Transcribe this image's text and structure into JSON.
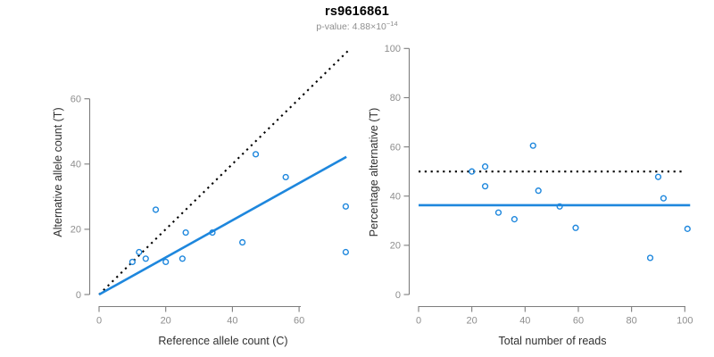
{
  "title": "rs9616861",
  "subtitle": {
    "prefix": "p-value: 4.88×10",
    "exponent": "−14"
  },
  "colors": {
    "accent_blue": "#1e87dd",
    "line_black": "#000000",
    "axis_gray": "#7d7d7d",
    "tick_label_gray": "#8e8e8e",
    "axis_title_dark": "#303030",
    "subtitle_gray": "#8e8e8e"
  },
  "chart_data": [
    {
      "type": "scatter",
      "panel": "left",
      "xlabel": "Reference allele count (C)",
      "ylabel": "Alternative allele count (T)",
      "xticks": [
        0,
        20,
        40,
        60
      ],
      "yticks": [
        0,
        20,
        40,
        60
      ],
      "xlim": [
        0,
        74.7
      ],
      "ylim": [
        0,
        74.7
      ],
      "grid": false,
      "legend": "none",
      "points": [
        [
          10,
          10
        ],
        [
          12,
          13
        ],
        [
          14,
          11
        ],
        [
          17,
          26
        ],
        [
          20,
          10
        ],
        [
          25,
          11
        ],
        [
          26,
          19
        ],
        [
          34,
          19
        ],
        [
          43,
          16
        ],
        [
          47,
          43
        ],
        [
          56,
          36
        ],
        [
          74,
          13
        ],
        [
          74,
          27
        ]
      ],
      "lines": [
        {
          "name": "identity-line",
          "style": "dotted",
          "color": "#000000",
          "x1": 0,
          "y1": 0,
          "x2": 74.6,
          "y2": 74.6
        },
        {
          "name": "fit-line",
          "style": "solid",
          "color": "#1e87dd",
          "x1": 0,
          "y1": 0,
          "x2": 74.2,
          "y2": 42.2
        }
      ]
    },
    {
      "type": "scatter",
      "panel": "right",
      "xlabel": "Total number of reads",
      "ylabel": "Percentage alternative (T)",
      "xticks": [
        0,
        20,
        40,
        60,
        80,
        100
      ],
      "yticks": [
        0,
        20,
        40,
        60,
        80,
        100
      ],
      "xlim": [
        0,
        102
      ],
      "ylim": [
        0,
        100
      ],
      "grid": false,
      "legend": "none",
      "points": [
        [
          20,
          50
        ],
        [
          25,
          44
        ],
        [
          25,
          52
        ],
        [
          30,
          33.3
        ],
        [
          36,
          30.6
        ],
        [
          43,
          60.5
        ],
        [
          45,
          42.2
        ],
        [
          53,
          35.8
        ],
        [
          59,
          27.1
        ],
        [
          87,
          14.9
        ],
        [
          90,
          47.8
        ],
        [
          92,
          39.1
        ],
        [
          101,
          26.7
        ]
      ],
      "lines": [
        {
          "name": "fifty-percent-reference-line",
          "style": "dotted",
          "color": "#000000",
          "x1": 0,
          "y1": 50,
          "x2": 100,
          "y2": 50
        },
        {
          "name": "mean-percentage-line",
          "style": "solid",
          "color": "#1e87dd",
          "x1": 0,
          "y1": 36.3,
          "x2": 102,
          "y2": 36.3
        }
      ]
    }
  ]
}
